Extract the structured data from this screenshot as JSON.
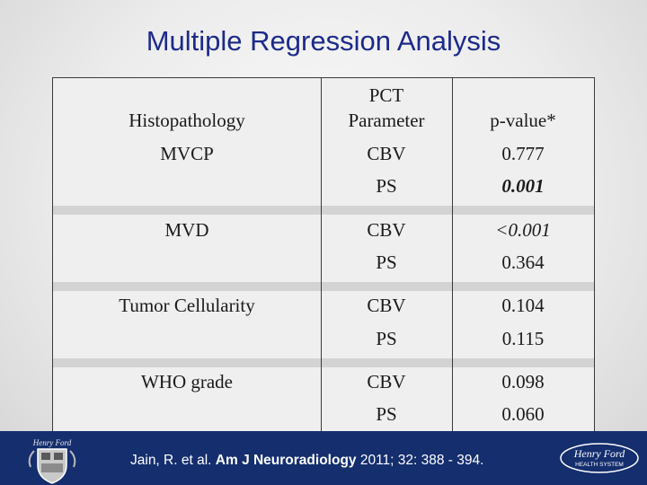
{
  "title": "Multiple Regression Analysis",
  "table": {
    "headers": {
      "histopathology": "Histopathology",
      "pct_line1": "PCT",
      "pct_line2": "Parameter",
      "pvalue": "p-value*"
    },
    "groups": [
      {
        "histopathology": "MVCP",
        "rows": [
          {
            "parameter": "CBV",
            "pvalue": "0.777"
          },
          {
            "parameter": "PS",
            "pvalue": "0.001"
          }
        ]
      },
      {
        "histopathology": "MVD",
        "rows": [
          {
            "parameter": "CBV",
            "pvalue": "<0.001"
          },
          {
            "parameter": "PS",
            "pvalue": "0.364"
          }
        ]
      },
      {
        "histopathology": "Tumor Cellularity",
        "rows": [
          {
            "parameter": "CBV",
            "pvalue": "0.104"
          },
          {
            "parameter": "PS",
            "pvalue": "0.115"
          }
        ]
      },
      {
        "histopathology": "WHO grade",
        "rows": [
          {
            "parameter": "CBV",
            "pvalue": "0.098"
          },
          {
            "parameter": "PS",
            "pvalue": "0.060"
          }
        ]
      }
    ]
  },
  "citation": {
    "authors": "Jain, R. et al.",
    "journal": "Am J Neuroradiology",
    "details": "2011; 32: 388 - 394."
  },
  "logos": {
    "left_logo_text": "Henry Ford",
    "right_logo_line1": "Henry Ford",
    "right_logo_line2": "HEALTH SYSTEM"
  },
  "colors": {
    "title": "#1c2a8a",
    "footer": "#142e6e"
  }
}
